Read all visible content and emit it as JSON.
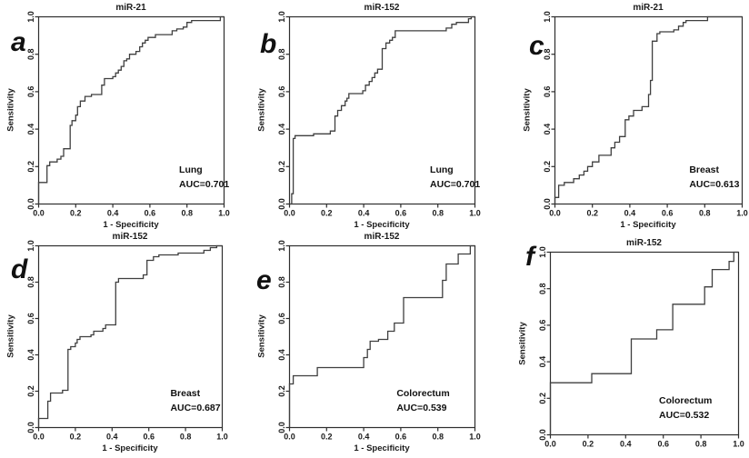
{
  "figure": {
    "background": "#ffffff",
    "axis_color": "#2e2e2e",
    "curve_color": "#3f3f3f",
    "text_color": "#1a1a1a"
  },
  "chart_data": [
    {
      "type": "line",
      "panel_label": "a",
      "title": "miR-21",
      "xlabel": "1 - Specificity",
      "ylabel": "Sensitivity",
      "xticks": [
        "0.0",
        "0.2",
        "0.4",
        "0.6",
        "0.8",
        "1.0"
      ],
      "yticks": [
        "0.0",
        "0.2",
        "0.4",
        "0.6",
        "0.8",
        "1.0"
      ],
      "xlim": [
        0,
        1
      ],
      "ylim": [
        0,
        1
      ],
      "grid": false,
      "annotation": {
        "site": "Lung",
        "auc_label": "AUC=0.701",
        "auc": 0.701
      },
      "points": [
        [
          0,
          0
        ],
        [
          0,
          0.115
        ],
        [
          0.045,
          0.115
        ],
        [
          0.045,
          0.205
        ],
        [
          0.06,
          0.205
        ],
        [
          0.06,
          0.225
        ],
        [
          0.1,
          0.225
        ],
        [
          0.1,
          0.24
        ],
        [
          0.12,
          0.24
        ],
        [
          0.12,
          0.255
        ],
        [
          0.135,
          0.255
        ],
        [
          0.135,
          0.295
        ],
        [
          0.17,
          0.295
        ],
        [
          0.17,
          0.42
        ],
        [
          0.18,
          0.42
        ],
        [
          0.18,
          0.445
        ],
        [
          0.2,
          0.445
        ],
        [
          0.2,
          0.475
        ],
        [
          0.21,
          0.475
        ],
        [
          0.21,
          0.52
        ],
        [
          0.225,
          0.52
        ],
        [
          0.225,
          0.55
        ],
        [
          0.25,
          0.55
        ],
        [
          0.25,
          0.575
        ],
        [
          0.285,
          0.575
        ],
        [
          0.285,
          0.585
        ],
        [
          0.34,
          0.585
        ],
        [
          0.34,
          0.635
        ],
        [
          0.355,
          0.635
        ],
        [
          0.355,
          0.67
        ],
        [
          0.4,
          0.67
        ],
        [
          0.4,
          0.68
        ],
        [
          0.415,
          0.68
        ],
        [
          0.415,
          0.7
        ],
        [
          0.43,
          0.7
        ],
        [
          0.43,
          0.715
        ],
        [
          0.445,
          0.715
        ],
        [
          0.445,
          0.735
        ],
        [
          0.46,
          0.735
        ],
        [
          0.46,
          0.765
        ],
        [
          0.475,
          0.765
        ],
        [
          0.475,
          0.775
        ],
        [
          0.49,
          0.775
        ],
        [
          0.49,
          0.8
        ],
        [
          0.525,
          0.8
        ],
        [
          0.525,
          0.815
        ],
        [
          0.545,
          0.815
        ],
        [
          0.545,
          0.84
        ],
        [
          0.56,
          0.84
        ],
        [
          0.56,
          0.86
        ],
        [
          0.575,
          0.86
        ],
        [
          0.575,
          0.875
        ],
        [
          0.59,
          0.875
        ],
        [
          0.59,
          0.89
        ],
        [
          0.63,
          0.89
        ],
        [
          0.63,
          0.905
        ],
        [
          0.72,
          0.905
        ],
        [
          0.72,
          0.925
        ],
        [
          0.745,
          0.925
        ],
        [
          0.745,
          0.935
        ],
        [
          0.78,
          0.935
        ],
        [
          0.78,
          0.945
        ],
        [
          0.8,
          0.945
        ],
        [
          0.8,
          0.97
        ],
        [
          0.825,
          0.97
        ],
        [
          0.825,
          0.98
        ],
        [
          0.98,
          0.98
        ],
        [
          0.98,
          1
        ],
        [
          1,
          1
        ]
      ]
    },
    {
      "type": "line",
      "panel_label": "b",
      "title": "miR-152",
      "xlabel": "1 - Specificity",
      "ylabel": "Sensitivity",
      "xticks": [
        "0.0",
        "0.2",
        "0.4",
        "0.6",
        "0.8",
        "1.0"
      ],
      "yticks": [
        "0.0",
        "0.2",
        "0.4",
        "0.6",
        "0.8",
        "1.0"
      ],
      "xlim": [
        0,
        1
      ],
      "ylim": [
        0,
        1
      ],
      "grid": false,
      "annotation": {
        "site": "Lung",
        "auc_label": "AUC=0.701",
        "auc": 0.701
      },
      "points": [
        [
          0,
          0
        ],
        [
          0.012,
          0
        ],
        [
          0.012,
          0.055
        ],
        [
          0.02,
          0.055
        ],
        [
          0.02,
          0.35
        ],
        [
          0.03,
          0.35
        ],
        [
          0.03,
          0.365
        ],
        [
          0.13,
          0.365
        ],
        [
          0.13,
          0.375
        ],
        [
          0.22,
          0.375
        ],
        [
          0.22,
          0.39
        ],
        [
          0.245,
          0.39
        ],
        [
          0.245,
          0.47
        ],
        [
          0.26,
          0.47
        ],
        [
          0.26,
          0.5
        ],
        [
          0.28,
          0.5
        ],
        [
          0.28,
          0.525
        ],
        [
          0.3,
          0.525
        ],
        [
          0.3,
          0.55
        ],
        [
          0.31,
          0.55
        ],
        [
          0.31,
          0.565
        ],
        [
          0.32,
          0.565
        ],
        [
          0.32,
          0.59
        ],
        [
          0.395,
          0.59
        ],
        [
          0.395,
          0.605
        ],
        [
          0.41,
          0.605
        ],
        [
          0.41,
          0.635
        ],
        [
          0.43,
          0.635
        ],
        [
          0.43,
          0.655
        ],
        [
          0.445,
          0.655
        ],
        [
          0.445,
          0.675
        ],
        [
          0.46,
          0.675
        ],
        [
          0.46,
          0.7
        ],
        [
          0.475,
          0.7
        ],
        [
          0.475,
          0.72
        ],
        [
          0.5,
          0.72
        ],
        [
          0.5,
          0.83
        ],
        [
          0.52,
          0.83
        ],
        [
          0.52,
          0.86
        ],
        [
          0.54,
          0.86
        ],
        [
          0.54,
          0.875
        ],
        [
          0.555,
          0.875
        ],
        [
          0.555,
          0.89
        ],
        [
          0.57,
          0.89
        ],
        [
          0.57,
          0.925
        ],
        [
          0.845,
          0.925
        ],
        [
          0.845,
          0.94
        ],
        [
          0.875,
          0.94
        ],
        [
          0.875,
          0.96
        ],
        [
          0.9,
          0.96
        ],
        [
          0.9,
          0.97
        ],
        [
          0.965,
          0.97
        ],
        [
          0.965,
          0.99
        ],
        [
          0.98,
          0.99
        ],
        [
          0.98,
          1
        ],
        [
          1,
          1
        ]
      ]
    },
    {
      "type": "line",
      "panel_label": "c",
      "title": "miR-21",
      "xlabel": "1 - Specificity",
      "ylabel": "Sensitivity",
      "xticks": [
        "0.0",
        "0.2",
        "0.4",
        "0.6",
        "0.8",
        "1.0"
      ],
      "yticks": [
        "0.0",
        "0.2",
        "0.4",
        "0.6",
        "0.8",
        "1.0"
      ],
      "xlim": [
        0,
        1
      ],
      "ylim": [
        0,
        1
      ],
      "grid": false,
      "annotation": {
        "site": "Breast",
        "auc_label": "AUC=0.613",
        "auc": 0.613
      },
      "points": [
        [
          0,
          0
        ],
        [
          0,
          0.035
        ],
        [
          0.02,
          0.035
        ],
        [
          0.02,
          0.1
        ],
        [
          0.05,
          0.1
        ],
        [
          0.05,
          0.115
        ],
        [
          0.1,
          0.115
        ],
        [
          0.1,
          0.135
        ],
        [
          0.13,
          0.135
        ],
        [
          0.13,
          0.155
        ],
        [
          0.155,
          0.155
        ],
        [
          0.155,
          0.175
        ],
        [
          0.175,
          0.175
        ],
        [
          0.175,
          0.2
        ],
        [
          0.2,
          0.2
        ],
        [
          0.2,
          0.225
        ],
        [
          0.235,
          0.225
        ],
        [
          0.235,
          0.26
        ],
        [
          0.3,
          0.26
        ],
        [
          0.3,
          0.3
        ],
        [
          0.32,
          0.3
        ],
        [
          0.32,
          0.33
        ],
        [
          0.345,
          0.33
        ],
        [
          0.345,
          0.36
        ],
        [
          0.375,
          0.36
        ],
        [
          0.375,
          0.45
        ],
        [
          0.395,
          0.45
        ],
        [
          0.395,
          0.47
        ],
        [
          0.42,
          0.47
        ],
        [
          0.42,
          0.5
        ],
        [
          0.465,
          0.5
        ],
        [
          0.465,
          0.52
        ],
        [
          0.5,
          0.52
        ],
        [
          0.5,
          0.585
        ],
        [
          0.51,
          0.585
        ],
        [
          0.51,
          0.66
        ],
        [
          0.52,
          0.66
        ],
        [
          0.52,
          0.87
        ],
        [
          0.545,
          0.87
        ],
        [
          0.545,
          0.91
        ],
        [
          0.56,
          0.91
        ],
        [
          0.56,
          0.92
        ],
        [
          0.635,
          0.92
        ],
        [
          0.635,
          0.93
        ],
        [
          0.66,
          0.93
        ],
        [
          0.66,
          0.95
        ],
        [
          0.685,
          0.95
        ],
        [
          0.685,
          0.97
        ],
        [
          0.7,
          0.97
        ],
        [
          0.7,
          0.98
        ],
        [
          0.815,
          0.98
        ],
        [
          0.815,
          1
        ],
        [
          1,
          1
        ]
      ]
    },
    {
      "type": "line",
      "panel_label": "d",
      "title": "miR-152",
      "xlabel": "1 - Specificity",
      "ylabel": "Sensitivity",
      "xticks": [
        "0.0",
        "0.2",
        "0.4",
        "0.6",
        "0.8",
        "1.0"
      ],
      "yticks": [
        "0.0",
        "0.2",
        "0.4",
        "0.6",
        "0.8",
        "1.0"
      ],
      "xlim": [
        0,
        1
      ],
      "ylim": [
        0,
        1
      ],
      "grid": false,
      "annotation": {
        "site": "Breast",
        "auc_label": "AUC=0.687",
        "auc": 0.687
      },
      "points": [
        [
          0,
          0
        ],
        [
          0,
          0.05
        ],
        [
          0.05,
          0.05
        ],
        [
          0.05,
          0.145
        ],
        [
          0.065,
          0.145
        ],
        [
          0.065,
          0.19
        ],
        [
          0.13,
          0.19
        ],
        [
          0.13,
          0.205
        ],
        [
          0.16,
          0.205
        ],
        [
          0.16,
          0.43
        ],
        [
          0.175,
          0.43
        ],
        [
          0.175,
          0.445
        ],
        [
          0.2,
          0.445
        ],
        [
          0.2,
          0.465
        ],
        [
          0.21,
          0.465
        ],
        [
          0.21,
          0.485
        ],
        [
          0.225,
          0.485
        ],
        [
          0.225,
          0.5
        ],
        [
          0.285,
          0.5
        ],
        [
          0.285,
          0.51
        ],
        [
          0.3,
          0.51
        ],
        [
          0.3,
          0.53
        ],
        [
          0.35,
          0.53
        ],
        [
          0.35,
          0.545
        ],
        [
          0.365,
          0.545
        ],
        [
          0.365,
          0.565
        ],
        [
          0.42,
          0.565
        ],
        [
          0.42,
          0.8
        ],
        [
          0.435,
          0.8
        ],
        [
          0.435,
          0.82
        ],
        [
          0.57,
          0.82
        ],
        [
          0.57,
          0.84
        ],
        [
          0.59,
          0.84
        ],
        [
          0.59,
          0.92
        ],
        [
          0.625,
          0.92
        ],
        [
          0.625,
          0.94
        ],
        [
          0.655,
          0.94
        ],
        [
          0.655,
          0.95
        ],
        [
          0.76,
          0.95
        ],
        [
          0.76,
          0.96
        ],
        [
          0.9,
          0.96
        ],
        [
          0.9,
          0.975
        ],
        [
          0.935,
          0.975
        ],
        [
          0.935,
          0.99
        ],
        [
          0.97,
          0.99
        ],
        [
          0.97,
          1
        ],
        [
          1,
          1
        ]
      ]
    },
    {
      "type": "line",
      "panel_label": "e",
      "title": "miR-152",
      "xlabel": "1 - Specificity",
      "ylabel": "Sensitivity",
      "xticks": [
        "0.0",
        "0.2",
        "0.4",
        "0.6",
        "0.8",
        "1.0"
      ],
      "yticks": [
        "0.0",
        "0.2",
        "0.4",
        "0.6",
        "0.8",
        "1.0"
      ],
      "xlim": [
        0,
        1
      ],
      "ylim": [
        0,
        1
      ],
      "grid": false,
      "annotation": {
        "site": "Colorectum",
        "auc_label": "AUC=0.539",
        "auc": 0.539
      },
      "points": [
        [
          0,
          0
        ],
        [
          0,
          0.24
        ],
        [
          0.02,
          0.24
        ],
        [
          0.02,
          0.285
        ],
        [
          0.15,
          0.285
        ],
        [
          0.15,
          0.33
        ],
        [
          0.4,
          0.33
        ],
        [
          0.4,
          0.385
        ],
        [
          0.42,
          0.385
        ],
        [
          0.42,
          0.43
        ],
        [
          0.435,
          0.43
        ],
        [
          0.435,
          0.475
        ],
        [
          0.48,
          0.475
        ],
        [
          0.48,
          0.485
        ],
        [
          0.53,
          0.485
        ],
        [
          0.53,
          0.53
        ],
        [
          0.565,
          0.53
        ],
        [
          0.565,
          0.575
        ],
        [
          0.615,
          0.575
        ],
        [
          0.615,
          0.715
        ],
        [
          0.825,
          0.715
        ],
        [
          0.825,
          0.81
        ],
        [
          0.845,
          0.81
        ],
        [
          0.845,
          0.9
        ],
        [
          0.91,
          0.9
        ],
        [
          0.91,
          0.955
        ],
        [
          0.975,
          0.955
        ],
        [
          0.975,
          1
        ],
        [
          1,
          1
        ]
      ]
    },
    {
      "type": "line",
      "panel_label": "f",
      "title": "miR-152",
      "ylabel": "Sensitivity",
      "xticks": [
        "0.0",
        "0.2",
        "0.4",
        "0.6",
        "0.8",
        "1.0"
      ],
      "yticks": [
        "0.0",
        "0.2",
        "0.4",
        "0.6",
        "0.8",
        "1.0"
      ],
      "xlim": [
        0,
        1
      ],
      "ylim": [
        0,
        1
      ],
      "grid": false,
      "annotation": {
        "site": "Colorectum",
        "auc_label": "AUC=0.532",
        "auc": 0.532
      },
      "points": [
        [
          0,
          0
        ],
        [
          0,
          0.285
        ],
        [
          0.22,
          0.285
        ],
        [
          0.22,
          0.335
        ],
        [
          0.43,
          0.335
        ],
        [
          0.43,
          0.525
        ],
        [
          0.565,
          0.525
        ],
        [
          0.565,
          0.575
        ],
        [
          0.65,
          0.575
        ],
        [
          0.65,
          0.715
        ],
        [
          0.82,
          0.715
        ],
        [
          0.82,
          0.81
        ],
        [
          0.86,
          0.81
        ],
        [
          0.86,
          0.905
        ],
        [
          0.95,
          0.905
        ],
        [
          0.95,
          0.95
        ],
        [
          0.975,
          0.95
        ],
        [
          0.975,
          1
        ],
        [
          1,
          1
        ]
      ]
    }
  ]
}
